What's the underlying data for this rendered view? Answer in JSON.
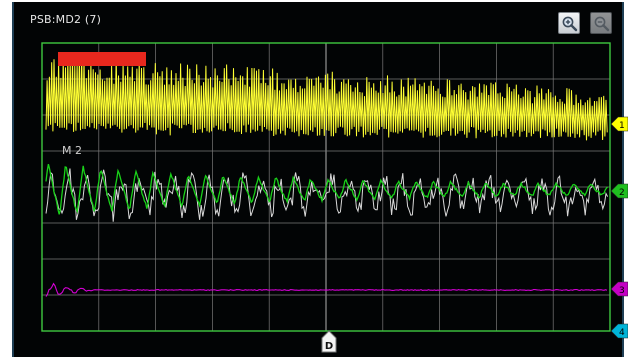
{
  "window": {
    "title": "PSB:MD2 (7)"
  },
  "toolbar": {
    "zoom_in_icon": "zoom-in-magnifier-icon",
    "zoom_out_icon": "zoom-out-magnifier-icon"
  },
  "scope": {
    "grid": "on",
    "channels": [
      {
        "name": "1",
        "color": "#ffff33",
        "marker_color": "#ffff00"
      },
      {
        "name": "2",
        "color": "#19d219",
        "marker_color": "#1fbf1f"
      },
      {
        "name": "3",
        "color": "#d400d4",
        "marker_color": "#c400c4"
      },
      {
        "name": "4",
        "color": "#00b4d8",
        "marker_color": "#00b4d8"
      }
    ],
    "math_label": "M 2",
    "trigger_label": "D",
    "colors": {
      "border": "#3fc83f",
      "grid": "#7a7a7a",
      "background": "#000000",
      "math_trace": "#d9d9d9",
      "red_badge": "#e8281e"
    }
  }
}
